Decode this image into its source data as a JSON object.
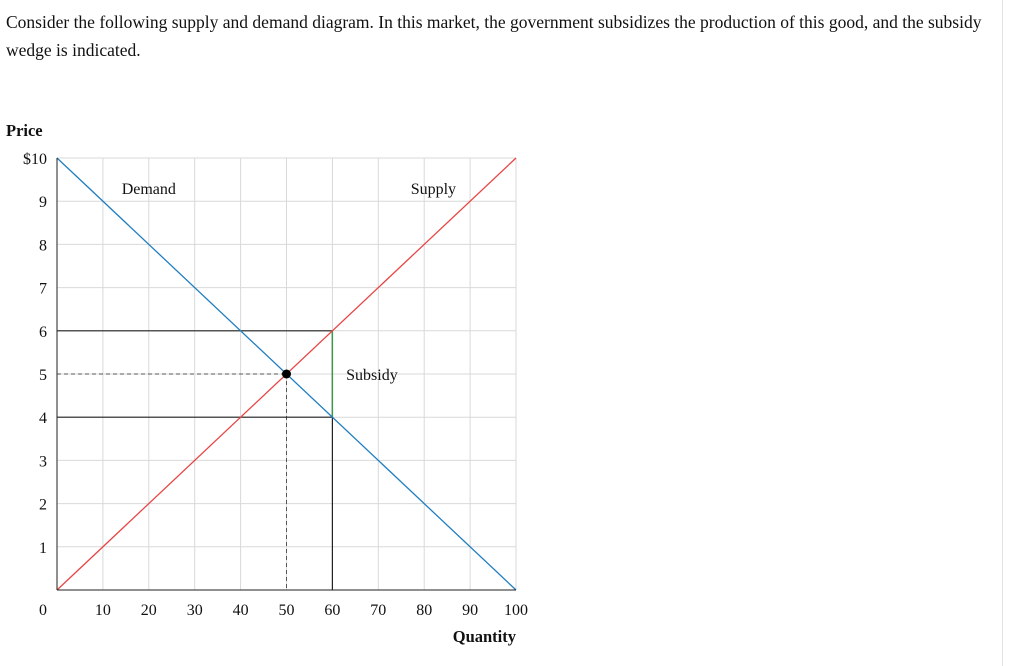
{
  "question": {
    "text": "Consider the following supply and demand diagram. In this market, the government subsidizes the production of this good, and the subsidy wedge is indicated."
  },
  "colors": {
    "demand": "#1f7ec0",
    "supply": "#e84545",
    "subsidy": "#3a9a4a",
    "grid": "#d9d9d9",
    "axis": "#222222"
  },
  "chart_data": {
    "type": "line",
    "xlabel": "Quantity",
    "ylabel": "Price",
    "xlim": [
      0,
      100
    ],
    "ylim": [
      0,
      10
    ],
    "grid": true,
    "x_ticks": [
      {
        "value": 0,
        "label": "0"
      },
      {
        "value": 10,
        "label": "10"
      },
      {
        "value": 20,
        "label": "20"
      },
      {
        "value": 30,
        "label": "30"
      },
      {
        "value": 40,
        "label": "40"
      },
      {
        "value": 50,
        "label": "50"
      },
      {
        "value": 60,
        "label": "60"
      },
      {
        "value": 70,
        "label": "70"
      },
      {
        "value": 80,
        "label": "80"
      },
      {
        "value": 90,
        "label": "90"
      },
      {
        "value": 100,
        "label": "100"
      }
    ],
    "y_ticks": [
      {
        "value": 1,
        "label": "1"
      },
      {
        "value": 2,
        "label": "2"
      },
      {
        "value": 3,
        "label": "3"
      },
      {
        "value": 4,
        "label": "4"
      },
      {
        "value": 5,
        "label": "5"
      },
      {
        "value": 6,
        "label": "6"
      },
      {
        "value": 7,
        "label": "7"
      },
      {
        "value": 8,
        "label": "8"
      },
      {
        "value": 9,
        "label": "9"
      },
      {
        "value": 10,
        "label": "$10"
      }
    ],
    "series": [
      {
        "name": "Demand",
        "x": [
          0,
          100
        ],
        "y": [
          10,
          0
        ],
        "label_at": [
          20,
          9.3
        ]
      },
      {
        "name": "Supply",
        "x": [
          0,
          100
        ],
        "y": [
          0,
          10
        ],
        "label_at": [
          82,
          9.3
        ]
      }
    ],
    "equilibrium": {
      "x": 50,
      "y": 5
    },
    "price_lines": [
      {
        "y": 6,
        "x_end": 60
      },
      {
        "y": 4,
        "x_end": 60
      }
    ],
    "quantity_line": {
      "x": 60,
      "y_end": 6
    },
    "dashed_guides": {
      "x": 50,
      "y": 5
    },
    "subsidy_wedge": {
      "x": 60,
      "y_low": 4,
      "y_high": 6,
      "label": "Subsidy",
      "label_at": [
        63,
        5
      ]
    }
  }
}
